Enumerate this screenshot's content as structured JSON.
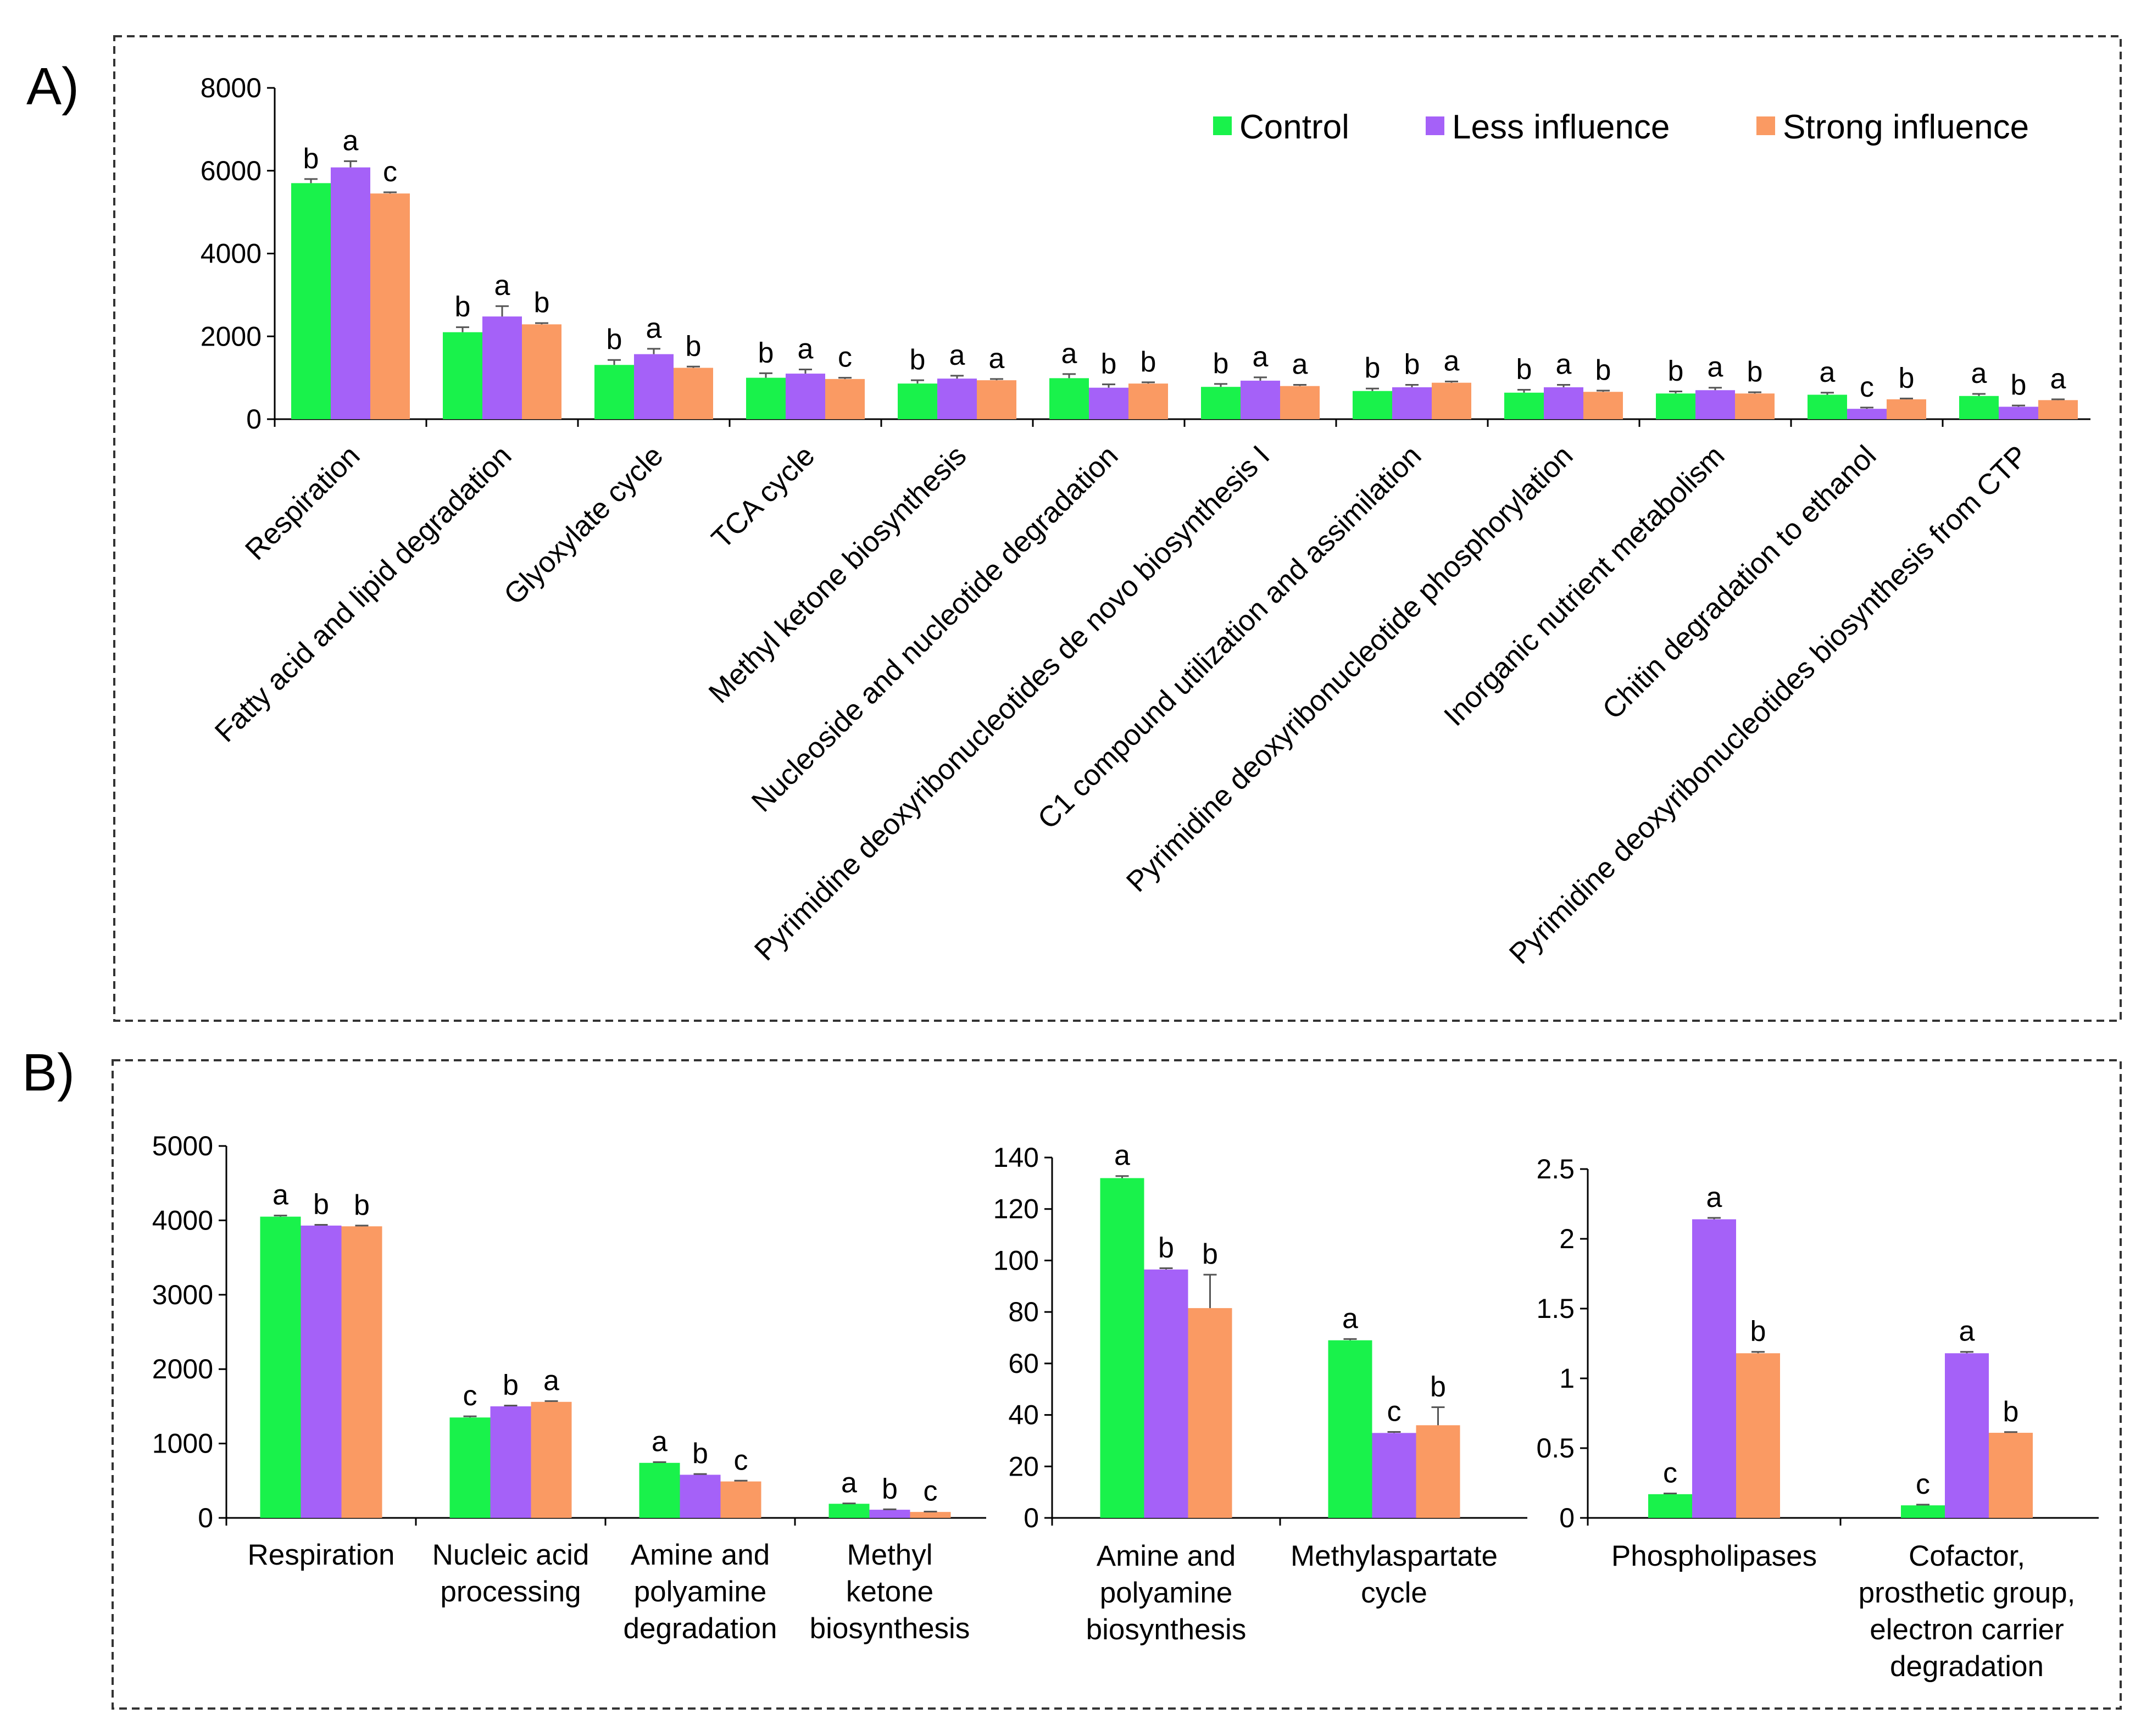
{
  "colors": {
    "control": "#19f24b",
    "less": "#a561f8",
    "strong": "#fa9a63"
  },
  "series_names": [
    "Control",
    "Less influence",
    "Strong influence"
  ],
  "panels": {
    "a_label": "A)",
    "b_label": "B)"
  },
  "chart_data": [
    {
      "type": "bar",
      "panel": "A",
      "ylim": [
        0,
        8000
      ],
      "yticks": [
        "0",
        "2000",
        "4000",
        "6000",
        "8000"
      ],
      "legend_position": "top-right",
      "categories": [
        "Respiration",
        "Fatty acid and lipid degradation",
        "Glyoxylate cycle",
        "TCA cycle",
        "Methyl ketone biosynthesis",
        "Nucleoside and nucleotide degradation",
        "Pyrimidine deoxyribonucleotides de novo biosynthesis I",
        "C1 compound utilization and assimilation",
        "Pyrimidine deoxyribonucleotide phosphorylation",
        "Inorganic nutrient metabolism",
        "Chitin degradation to ethanol",
        "Pyrimidine deoxyribonucleotides biosynthesis from CTP"
      ],
      "series": [
        {
          "name": "Control",
          "values": [
            5700,
            2100,
            1310,
            1000,
            860,
            990,
            780,
            680,
            640,
            620,
            590,
            560
          ],
          "errors": [
            100,
            120,
            120,
            110,
            80,
            100,
            70,
            60,
            70,
            50,
            50,
            50
          ],
          "letters": [
            "b",
            "b",
            "b",
            "b",
            "b",
            "a",
            "b",
            "b",
            "b",
            "b",
            "a",
            "a"
          ]
        },
        {
          "name": "Less influence",
          "values": [
            6080,
            2480,
            1570,
            1100,
            980,
            760,
            930,
            770,
            770,
            700,
            250,
            300
          ],
          "errors": [
            150,
            250,
            130,
            100,
            70,
            80,
            80,
            60,
            60,
            60,
            30,
            30
          ],
          "letters": [
            "a",
            "a",
            "a",
            "a",
            "a",
            "b",
            "a",
            "b",
            "a",
            "a",
            "c",
            "b"
          ]
        },
        {
          "name": "Strong influence",
          "values": [
            5450,
            2290,
            1240,
            970,
            940,
            860,
            800,
            880,
            660,
            620,
            480,
            460
          ],
          "errors": [
            30,
            30,
            30,
            30,
            30,
            30,
            30,
            30,
            30,
            30,
            20,
            20
          ],
          "letters": [
            "c",
            "b",
            "b",
            "c",
            "a",
            "b",
            "a",
            "a",
            "b",
            "b",
            "b",
            "a"
          ]
        }
      ]
    },
    {
      "type": "bar",
      "panel": "B-1",
      "ylim": [
        0,
        5000
      ],
      "yticks": [
        "0",
        "1000",
        "2000",
        "3000",
        "4000",
        "5000"
      ],
      "categories": [
        [
          "Respiration"
        ],
        [
          "Nucleic acid",
          "processing"
        ],
        [
          "Amine and",
          "polyamine",
          "degradation"
        ],
        [
          "Methyl",
          "ketone",
          "biosynthesis"
        ]
      ],
      "series": [
        {
          "name": "Control",
          "values": [
            4050,
            1350,
            740,
            190
          ],
          "errors": [
            15,
            15,
            10,
            5
          ],
          "letters": [
            "a",
            "c",
            "a",
            "a"
          ]
        },
        {
          "name": "Less influence",
          "values": [
            3930,
            1500,
            580,
            110
          ],
          "errors": [
            10,
            10,
            10,
            5
          ],
          "letters": [
            "b",
            "b",
            "b",
            "b"
          ]
        },
        {
          "name": "Strong influence",
          "values": [
            3920,
            1560,
            490,
            80
          ],
          "errors": [
            10,
            10,
            10,
            5
          ],
          "letters": [
            "b",
            "a",
            "c",
            "c"
          ]
        }
      ]
    },
    {
      "type": "bar",
      "panel": "B-2",
      "ylim": [
        0,
        140
      ],
      "yticks": [
        "0",
        "20",
        "40",
        "60",
        "80",
        "100",
        "120",
        "140"
      ],
      "categories": [
        [
          "Amine and",
          "polyamine",
          "biosynthesis"
        ],
        [
          "Methylaspartate",
          "cycle"
        ]
      ],
      "series": [
        {
          "name": "Control",
          "values": [
            132,
            69
          ],
          "errors": [
            0.8,
            0.5
          ],
          "letters": [
            "a",
            "a"
          ]
        },
        {
          "name": "Less influence",
          "values": [
            96.5,
            33
          ],
          "errors": [
            0.5,
            0.4
          ],
          "letters": [
            "b",
            "c"
          ]
        },
        {
          "name": "Strong influence",
          "values": [
            81.5,
            36
          ],
          "errors": [
            13,
            7
          ],
          "letters": [
            "b",
            "b"
          ]
        }
      ]
    },
    {
      "type": "bar",
      "panel": "B-3",
      "ylim": [
        0,
        2.5
      ],
      "yticks": [
        "0",
        "0.5",
        "1",
        "1.5",
        "2",
        "2.5"
      ],
      "categories": [
        [
          "Phospholipases"
        ],
        [
          "Cofactor,",
          "prosthetic group,",
          "electron carrier",
          "degradation"
        ]
      ],
      "series": [
        {
          "name": "Control",
          "values": [
            0.17,
            0.09
          ],
          "errors": [
            0.005,
            0.005
          ],
          "letters": [
            "c",
            "c"
          ]
        },
        {
          "name": "Less influence",
          "values": [
            2.14,
            1.18
          ],
          "errors": [
            0.01,
            0.01
          ],
          "letters": [
            "a",
            "a"
          ]
        },
        {
          "name": "Strong influence",
          "values": [
            1.18,
            0.61
          ],
          "errors": [
            0.01,
            0.005
          ],
          "letters": [
            "b",
            "b"
          ]
        }
      ]
    }
  ]
}
